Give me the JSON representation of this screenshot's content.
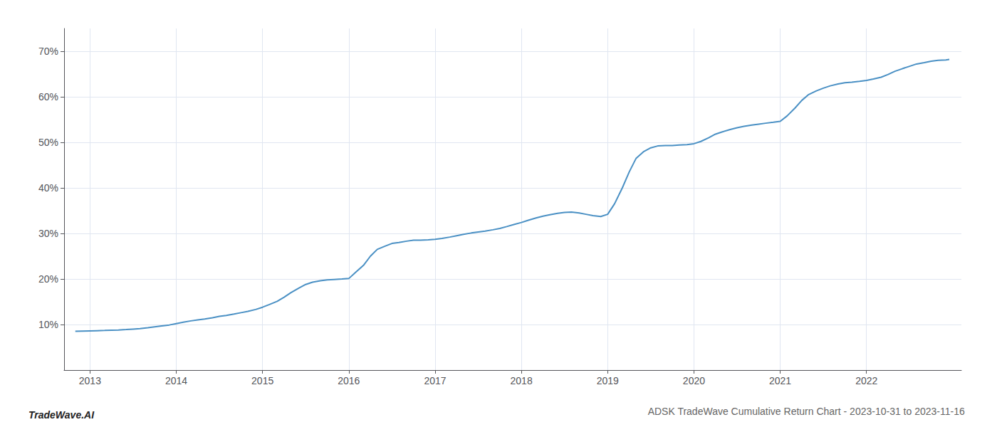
{
  "chart_data": {
    "type": "line",
    "title": "ADSK TradeWave Cumulative Return Chart - 2023-10-31 to 2023-11-16",
    "annotations": [
      "TradeWave.AI"
    ],
    "color": "#4a90c4",
    "grid": true,
    "x": [
      2012.83,
      2013.0,
      2013.08,
      2013.17,
      2013.25,
      2013.33,
      2013.42,
      2013.5,
      2013.58,
      2013.67,
      2013.75,
      2013.83,
      2013.92,
      2014.0,
      2014.08,
      2014.17,
      2014.25,
      2014.33,
      2014.42,
      2014.5,
      2014.58,
      2014.67,
      2014.75,
      2014.83,
      2014.92,
      2015.0,
      2015.08,
      2015.17,
      2015.25,
      2015.33,
      2015.42,
      2015.5,
      2015.58,
      2015.67,
      2015.75,
      2015.83,
      2015.92,
      2016.0,
      2016.08,
      2016.17,
      2016.25,
      2016.33,
      2016.42,
      2016.5,
      2016.58,
      2016.67,
      2016.75,
      2016.83,
      2016.92,
      2017.0,
      2017.08,
      2017.17,
      2017.25,
      2017.33,
      2017.42,
      2017.5,
      2017.58,
      2017.67,
      2017.75,
      2017.83,
      2017.92,
      2018.0,
      2018.08,
      2018.17,
      2018.25,
      2018.33,
      2018.42,
      2018.5,
      2018.58,
      2018.67,
      2018.75,
      2018.83,
      2018.92,
      2019.0,
      2019.08,
      2019.17,
      2019.25,
      2019.33,
      2019.42,
      2019.5,
      2019.58,
      2019.67,
      2019.75,
      2019.83,
      2019.92,
      2020.0,
      2020.08,
      2020.17,
      2020.25,
      2020.33,
      2020.42,
      2020.5,
      2020.58,
      2020.67,
      2020.75,
      2020.83,
      2020.92,
      2021.0,
      2021.08,
      2021.17,
      2021.25,
      2021.33,
      2021.42,
      2021.5,
      2021.58,
      2021.67,
      2021.75,
      2021.83,
      2021.92,
      2022.0,
      2022.08,
      2022.17,
      2022.25,
      2022.33,
      2022.42,
      2022.5,
      2022.58,
      2022.67,
      2022.75,
      2022.83,
      2022.92,
      2022.96
    ],
    "values": [
      8.5,
      8.6,
      8.65,
      8.7,
      8.75,
      8.8,
      8.9,
      9.0,
      9.1,
      9.3,
      9.5,
      9.7,
      9.9,
      10.2,
      10.5,
      10.8,
      11.0,
      11.2,
      11.5,
      11.8,
      12.0,
      12.3,
      12.6,
      12.9,
      13.3,
      13.8,
      14.4,
      15.1,
      16.0,
      17.0,
      18.0,
      18.8,
      19.3,
      19.6,
      19.8,
      19.9,
      20.0,
      20.1,
      21.5,
      23.0,
      25.0,
      26.5,
      27.2,
      27.8,
      28.0,
      28.3,
      28.5,
      28.5,
      28.6,
      28.7,
      28.9,
      29.2,
      29.5,
      29.8,
      30.1,
      30.3,
      30.5,
      30.8,
      31.1,
      31.5,
      32.0,
      32.4,
      32.9,
      33.4,
      33.8,
      34.1,
      34.4,
      34.6,
      34.7,
      34.5,
      34.2,
      33.9,
      33.7,
      34.2,
      36.5,
      40.0,
      43.5,
      46.5,
      48.0,
      48.8,
      49.2,
      49.3,
      49.3,
      49.4,
      49.5,
      49.7,
      50.2,
      51.0,
      51.8,
      52.3,
      52.8,
      53.2,
      53.5,
      53.8,
      54.0,
      54.2,
      54.4,
      54.6,
      55.8,
      57.5,
      59.2,
      60.5,
      61.3,
      61.9,
      62.4,
      62.8,
      63.1,
      63.2,
      63.4,
      63.6,
      63.9,
      64.3,
      64.9,
      65.6,
      66.2,
      66.7,
      67.2,
      67.5,
      67.8,
      68.0,
      68.1,
      68.2
    ],
    "xlim": [
      2012.7,
      2023.1
    ],
    "xticks": [
      2013,
      2014,
      2015,
      2016,
      2017,
      2018,
      2019,
      2020,
      2021,
      2022
    ],
    "ylim": [
      0,
      75
    ],
    "yticks": [
      {
        "value": 10,
        "label": "10%"
      },
      {
        "value": 20,
        "label": "20%"
      },
      {
        "value": 30,
        "label": "30%"
      },
      {
        "value": 40,
        "label": "40%"
      },
      {
        "value": 50,
        "label": "50%"
      },
      {
        "value": 60,
        "label": "60%"
      },
      {
        "value": 70,
        "label": "70%"
      }
    ]
  }
}
